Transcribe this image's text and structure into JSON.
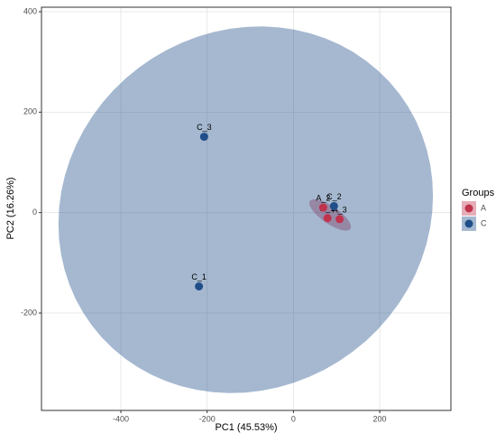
{
  "chart_data": {
    "type": "scatter",
    "xlabel": "PC1 (45.53%)",
    "ylabel": "PC2 (16.26%)",
    "legend_title": "Groups",
    "legend": "right",
    "grid": true,
    "ellipses": true,
    "xlim": [
      -584,
      365
    ],
    "ylim": [
      -394,
      409
    ],
    "xticks": [
      -400,
      -200,
      0,
      200
    ],
    "yticks": [
      -200,
      0,
      200,
      400
    ],
    "series": [
      {
        "name": "A",
        "color": "#c0334d",
        "labels": [
          "A_1",
          "A_2",
          "A_3"
        ],
        "x": [
          79,
          69,
          107
        ],
        "values": [
          -11,
          10,
          -13
        ]
      },
      {
        "name": "C",
        "color": "#1f4e89",
        "labels": [
          "C_1",
          "C_2",
          "C_3"
        ],
        "x": [
          -219,
          94,
          -207
        ],
        "values": [
          -147,
          13,
          151
        ]
      }
    ]
  }
}
